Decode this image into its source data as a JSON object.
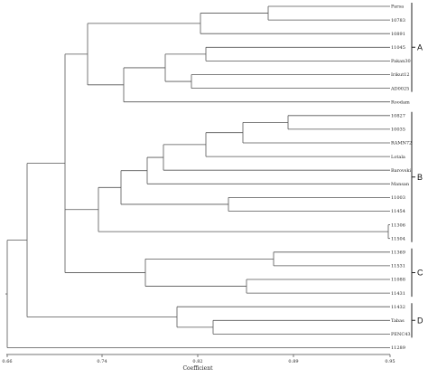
{
  "leaves": [
    "Parsa",
    "10783",
    "10891",
    "11045",
    "Pakan30",
    "Irikut12",
    "AD0025",
    "Roodam",
    "10827",
    "10035",
    "RAMN72",
    "Lotala",
    "Barovski",
    "Mansan",
    "11003",
    "11454",
    "11306",
    "11504",
    "11369",
    "11531",
    "11088",
    "11431",
    "11432",
    "Tabas",
    "PENC43",
    "11289"
  ],
  "groups": [
    {
      "label": "A"
    },
    {
      "label": "B"
    },
    {
      "label": "C"
    },
    {
      "label": "D"
    }
  ],
  "axis": {
    "title": "Coefficient",
    "ticks": [
      "0.66",
      "0.74",
      "0.82",
      "0.89",
      "0.95"
    ]
  }
}
